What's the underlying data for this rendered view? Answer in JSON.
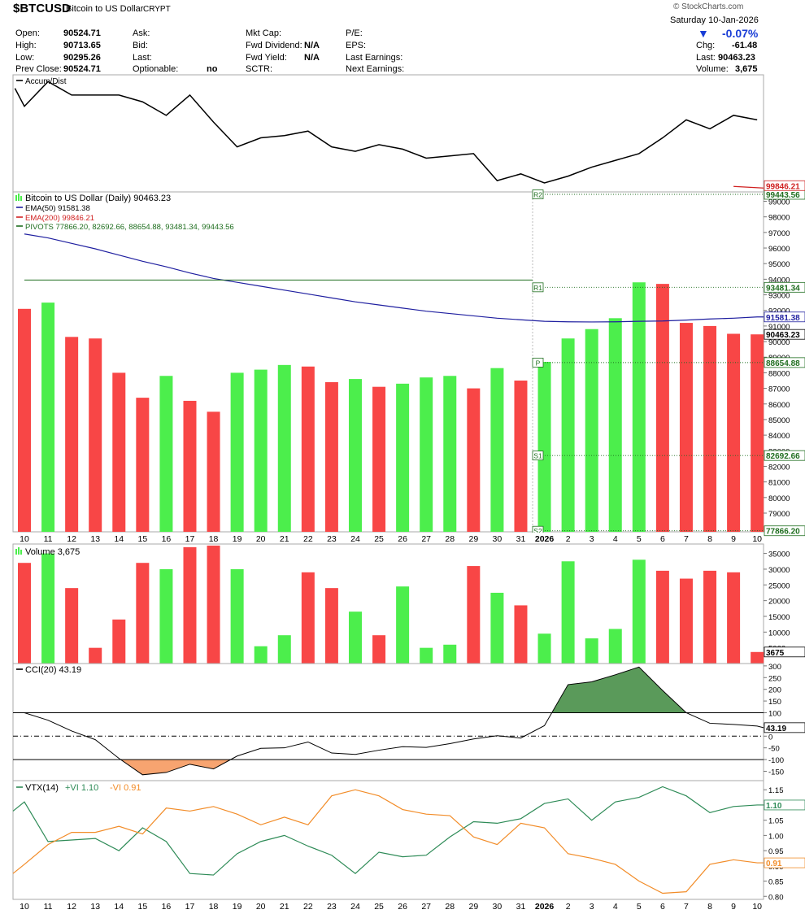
{
  "header": {
    "symbol": "$BTCUSD",
    "name": "Bitcoin to US Dollar",
    "exchange": "CRYPT",
    "logo": "© StockCharts.com",
    "date": "Saturday  10-Jan-2026",
    "change_pct": "-0.07%",
    "change_arrow": "▼",
    "quote": [
      {
        "label": "Open:",
        "value": "90524.71"
      },
      {
        "label": "High:",
        "value": "90713.65"
      },
      {
        "label": "Low:",
        "value": "90295.26"
      },
      {
        "label": "Prev Close:",
        "value": "90524.71"
      }
    ],
    "col2": [
      {
        "label": "Ask:",
        "value": ""
      },
      {
        "label": "Bid:",
        "value": ""
      },
      {
        "label": "Last:",
        "value": ""
      },
      {
        "label": "Optionable:",
        "value": "no"
      }
    ],
    "col3": [
      {
        "label": "Mkt Cap:",
        "value": ""
      },
      {
        "label": "Fwd Dividend:",
        "value": "N/A"
      },
      {
        "label": "Fwd Yield:",
        "value": "N/A"
      },
      {
        "label": "SCTR:",
        "value": ""
      }
    ],
    "col4": [
      {
        "label": "P/E:",
        "value": ""
      },
      {
        "label": "EPS:",
        "value": ""
      },
      {
        "label": "Last Earnings:",
        "value": ""
      },
      {
        "label": "Next Earnings:",
        "value": ""
      }
    ],
    "col5": [
      {
        "label": "Chg:",
        "value": "-61.48"
      },
      {
        "label": "Last:",
        "value": "90463.23"
      },
      {
        "label": "Volume:",
        "value": "3,675"
      }
    ]
  },
  "colors": {
    "up": "#4cee4c",
    "down": "#f84646",
    "ema50": "#1f1fa0",
    "ema200": "#d02020",
    "pivot": "#1f6e1f",
    "vtx_plus": "#2e8b57",
    "vtx_minus": "#f28c28",
    "cci_pos_fill": "#5a9a5a",
    "cci_neg_fill": "#f7a470"
  },
  "chart_data": {
    "type": "bar",
    "x_labels": [
      "10",
      "11",
      "12",
      "13",
      "14",
      "15",
      "16",
      "17",
      "18",
      "19",
      "20",
      "21",
      "22",
      "23",
      "24",
      "25",
      "26",
      "27",
      "28",
      "29",
      "30",
      "31",
      "2026",
      "2",
      "3",
      "4",
      "5",
      "6",
      "7",
      "8",
      "9",
      "10"
    ],
    "accum_dist": {
      "label": "Accum/Dist",
      "values": [
        4.4,
        4.0,
        4.55,
        4.25,
        4.25,
        4.25,
        4.1,
        3.8,
        4.25,
        3.65,
        3.1,
        3.3,
        3.35,
        3.45,
        3.1,
        3.0,
        3.15,
        3.05,
        2.85,
        2.9,
        2.95,
        2.35,
        2.5,
        2.3,
        2.45,
        2.65,
        2.8,
        2.95,
        3.3,
        3.7,
        3.5,
        3.8,
        3.7,
        3.7
      ],
      "x_index": [
        -0.4,
        0.0,
        1.0,
        2.0,
        3.0,
        4.0,
        5.0,
        6.0,
        7.0,
        8.0,
        9.0,
        10.0,
        11.0,
        12.0,
        13.0,
        14.0,
        15.0,
        16.0,
        17.0,
        18.0,
        19.0,
        20.0,
        21.0,
        22.0,
        23.0,
        24.0,
        25.0,
        26.0,
        27.0,
        28.0,
        29.0,
        30.0,
        31.0,
        31.0
      ]
    },
    "price": {
      "title": "Bitcoin to US Dollar (Daily) 90463.23",
      "y_ticks": [
        79000,
        80000,
        81000,
        82000,
        83000,
        84000,
        85000,
        86000,
        87000,
        88000,
        89000,
        90000,
        91000,
        92000,
        93000,
        94000,
        95000,
        96000,
        97000,
        98000,
        99000
      ],
      "ylim": [
        77800,
        99600
      ],
      "closes": [
        92100,
        92500,
        90300,
        90200,
        88000,
        86400,
        87800,
        86200,
        85500,
        88000,
        88200,
        88500,
        88400,
        87400,
        87600,
        87100,
        87300,
        87700,
        87800,
        87000,
        88300,
        87500,
        88700,
        90200,
        90800,
        91500,
        93800,
        93700,
        91200,
        91000,
        90500,
        90463
      ],
      "up": [
        false,
        true,
        false,
        false,
        false,
        false,
        true,
        false,
        false,
        true,
        true,
        true,
        false,
        false,
        true,
        false,
        true,
        true,
        true,
        false,
        true,
        false,
        true,
        true,
        true,
        true,
        true,
        false,
        false,
        false,
        false,
        false
      ],
      "ema50": {
        "label": "EMA(50) 91581.38",
        "values": [
          96900,
          96650,
          96300,
          95950,
          95550,
          95150,
          94800,
          94400,
          94050,
          93800,
          93550,
          93300,
          93050,
          92800,
          92550,
          92350,
          92150,
          91950,
          91800,
          91650,
          91500,
          91400,
          91300,
          91270,
          91260,
          91270,
          91300,
          91320,
          91380,
          91450,
          91500,
          91581
        ]
      },
      "ema200": {
        "label": "EMA(200) 99846.21",
        "value": 99846.21
      },
      "pivots": {
        "label": "PIVOTS 77866.20, 82692.66, 88654.88, 93481.34, 99443.56",
        "levels": [
          {
            "name": "S2",
            "value": 77866.2,
            "text": "77866.20"
          },
          {
            "name": "S1",
            "value": 82692.66,
            "text": "82692.66"
          },
          {
            "name": "P",
            "value": 88654.88,
            "text": "88654.88"
          },
          {
            "name": "R1",
            "value": 93481.34,
            "text": "93481.34"
          },
          {
            "name": "R2",
            "value": 99443.56,
            "text": "99443.56"
          }
        ],
        "prior_r1": 93950
      },
      "last_text": "90463.23",
      "ema50_text": "91581.38",
      "ema200_text": "99846.21"
    },
    "volume": {
      "label": "Volume 3,675",
      "values": [
        32000,
        35000,
        24000,
        5000,
        14000,
        32000,
        30000,
        37000,
        37500,
        30000,
        5500,
        9000,
        29000,
        24000,
        16500,
        9000,
        24500,
        5000,
        6000,
        31000,
        22500,
        18500,
        9500,
        32500,
        8000,
        11000,
        33000,
        29500,
        27000,
        29500,
        29000,
        3675
      ],
      "y_ticks": [
        5000,
        10000,
        15000,
        20000,
        25000,
        30000,
        35000
      ],
      "ylim": [
        0,
        38000
      ],
      "last_text": "3675"
    },
    "cci": {
      "label": "CCI(20) 43.19",
      "values": [
        100,
        68,
        22,
        -15,
        -95,
        -165,
        -155,
        -120,
        -140,
        -85,
        -52,
        -50,
        -25,
        -72,
        -78,
        -60,
        -45,
        -48,
        -32,
        -12,
        2,
        -8,
        45,
        220,
        232,
        262,
        295,
        195,
        100,
        55,
        50,
        43.19
      ],
      "y_ticks": [
        -150,
        -100,
        -50,
        0,
        50,
        100,
        150,
        200,
        250,
        300
      ],
      "ylim": [
        -190,
        310
      ],
      "last_text": "43.19"
    },
    "vtx": {
      "label": "VTX(14)",
      "plus_label": "+VI 1.10",
      "minus_label": "-VI 0.91",
      "plus": [
        1.11,
        0.98,
        0.985,
        0.99,
        0.95,
        1.025,
        0.98,
        0.875,
        0.87,
        0.94,
        0.98,
        1.0,
        0.965,
        0.935,
        0.875,
        0.945,
        0.93,
        0.935,
        0.995,
        1.045,
        1.04,
        1.055,
        1.105,
        1.12,
        1.05,
        1.11,
        1.125,
        1.16,
        1.13,
        1.075,
        1.095,
        1.1
      ],
      "minus": [
        0.905,
        0.97,
        1.01,
        1.01,
        1.03,
        1.005,
        1.09,
        1.08,
        1.095,
        1.07,
        1.035,
        1.06,
        1.035,
        1.13,
        1.15,
        1.13,
        1.085,
        1.07,
        1.065,
        0.995,
        0.97,
        1.04,
        1.025,
        0.94,
        0.925,
        0.905,
        0.85,
        0.81,
        0.815,
        0.905,
        0.92,
        0.91
      ],
      "y_ticks": [
        0.8,
        0.85,
        0.9,
        0.95,
        1.0,
        1.05,
        1.1,
        1.15
      ],
      "ylim": [
        0.79,
        1.18
      ],
      "plus_text": "1.10",
      "minus_text": "0.91"
    }
  }
}
